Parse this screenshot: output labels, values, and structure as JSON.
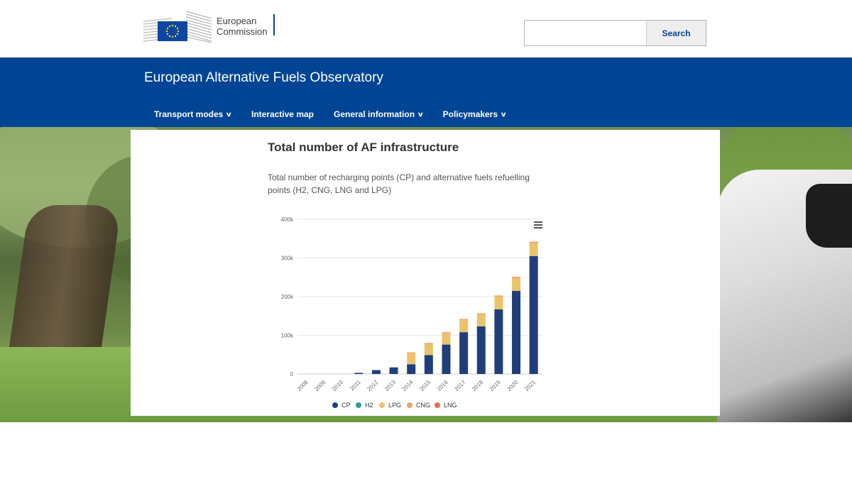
{
  "header": {
    "logo_text_line1": "European",
    "logo_text_line2": "Commission",
    "search_placeholder": "",
    "search_button": "Search"
  },
  "site": {
    "title": "European Alternative Fuels Observatory",
    "nav": [
      {
        "label": "Transport modes",
        "has_dropdown": true
      },
      {
        "label": "Interactive map",
        "has_dropdown": false
      },
      {
        "label": "General information",
        "has_dropdown": true
      },
      {
        "label": "Policymakers",
        "has_dropdown": true
      }
    ]
  },
  "card": {
    "title": "Total number of AF infrastructure",
    "description": "Total number of recharging points (CP) and alternative fuels refuelling points (H2, CNG, LNG and LPG)"
  },
  "chart_data": {
    "type": "bar",
    "stacked": true,
    "categories": [
      "2008",
      "2009",
      "2010",
      "2011",
      "2012",
      "2013",
      "2014",
      "2015",
      "2016",
      "2017",
      "2018",
      "2019",
      "2020",
      "2021"
    ],
    "series": [
      {
        "name": "CP",
        "color": "#1f3f7a",
        "values": [
          0,
          0,
          0,
          3000,
          10000,
          17000,
          25000,
          49000,
          76000,
          108000,
          123000,
          167000,
          215000,
          305000
        ]
      },
      {
        "name": "H2",
        "color": "#2a9d8f",
        "values": [
          0,
          0,
          0,
          0,
          0,
          0,
          0,
          0,
          0,
          0,
          0,
          0,
          0,
          0
        ]
      },
      {
        "name": "LPG",
        "color": "#e9c46a",
        "values": [
          0,
          0,
          0,
          0,
          0,
          0,
          29000,
          28000,
          29000,
          31000,
          31000,
          33000,
          32000,
          33000
        ]
      },
      {
        "name": "CNG",
        "color": "#f4a261",
        "values": [
          0,
          0,
          0,
          0,
          0,
          0,
          2000,
          3000,
          3000,
          3000,
          3000,
          3000,
          4000,
          4000
        ]
      },
      {
        "name": "LNG",
        "color": "#e76f51",
        "values": [
          0,
          0,
          0,
          0,
          0,
          0,
          0,
          0,
          0,
          0,
          0,
          0,
          0,
          0
        ]
      }
    ],
    "ylim": [
      0,
      400000
    ],
    "y_ticks": [
      {
        "value": 0,
        "label": "0"
      },
      {
        "value": 100000,
        "label": "100k"
      },
      {
        "value": 200000,
        "label": "200k"
      },
      {
        "value": 300000,
        "label": "300k"
      },
      {
        "value": 400000,
        "label": "400k"
      }
    ],
    "grid": true,
    "legend_position": "bottom",
    "menu_icon": "hamburger-icon"
  }
}
